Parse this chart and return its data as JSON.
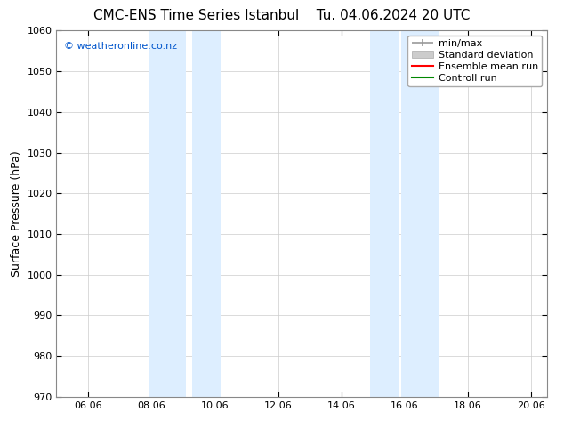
{
  "title": "CMC-ENS Time Series Istanbul",
  "title_right": "Tu. 04.06.2024 20 UTC",
  "ylabel": "Surface Pressure (hPa)",
  "ylim": [
    970,
    1060
  ],
  "yticks": [
    970,
    980,
    990,
    1000,
    1010,
    1020,
    1030,
    1040,
    1050,
    1060
  ],
  "xlim_start": 5.0,
  "xlim_end": 20.5,
  "xtick_positions": [
    6.0,
    8.0,
    10.0,
    12.0,
    14.0,
    16.0,
    18.0,
    20.0
  ],
  "xtick_labels": [
    "06.06",
    "08.06",
    "10.06",
    "12.06",
    "14.06",
    "16.06",
    "18.06",
    "20.06"
  ],
  "shaded_regions": [
    {
      "xmin": 7.9,
      "xmax": 9.1
    },
    {
      "xmin": 9.3,
      "xmax": 10.2
    },
    {
      "xmin": 14.9,
      "xmax": 15.8
    },
    {
      "xmin": 15.9,
      "xmax": 17.1
    }
  ],
  "shade_color": "#ddeeff",
  "background_color": "#ffffff",
  "copyright_text": "© weatheronline.co.nz",
  "copyright_color": "#0055cc",
  "legend_items": [
    {
      "label": "min/max",
      "color": "#999999",
      "lw": 1.5,
      "style": "minmax"
    },
    {
      "label": "Standard deviation",
      "color": "#cccccc",
      "lw": 8,
      "style": "band"
    },
    {
      "label": "Ensemble mean run",
      "color": "#ff0000",
      "lw": 1.5,
      "style": "line"
    },
    {
      "label": "Controll run",
      "color": "#008800",
      "lw": 1.5,
      "style": "line"
    }
  ],
  "grid_color": "#cccccc",
  "title_fontsize": 11,
  "tick_fontsize": 8,
  "ylabel_fontsize": 9,
  "copyright_fontsize": 8,
  "legend_fontsize": 8,
  "figwidth": 6.34,
  "figheight": 4.9,
  "dpi": 100
}
